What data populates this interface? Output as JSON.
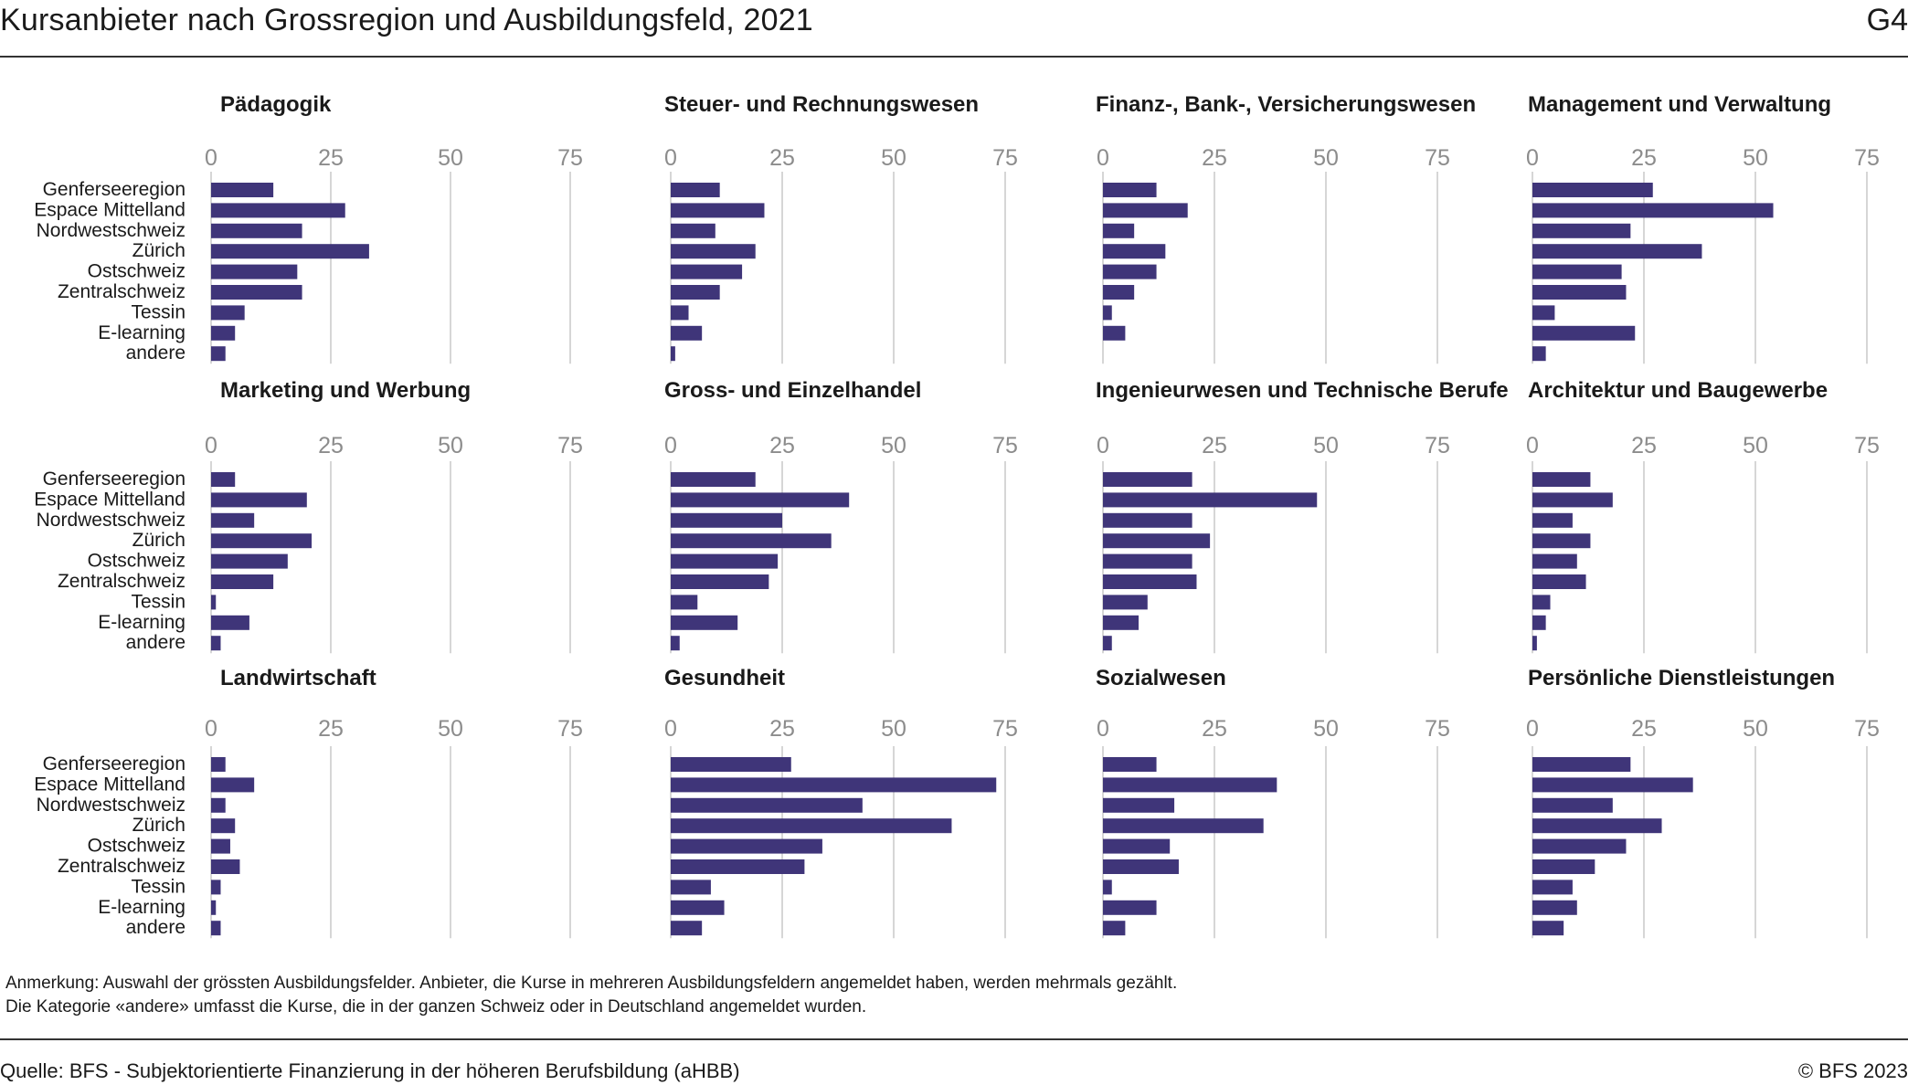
{
  "header": {
    "title": "Kursanbieter nach Grossregion und Ausbildungsfeld, 2021",
    "figure_id": "G4"
  },
  "footer": {
    "note_line1": "Anmerkung: Auswahl der grössten Ausbildungsfelder. Anbieter, die Kurse in mehreren Ausbildungsfeldern angemeldet haben, werden mehrmals gezählt.",
    "note_line2": "Die Kategorie «andere» umfasst die Kurse, die in der ganzen Schweiz oder in Deutschland angemeldet wurden.",
    "source": "Quelle: BFS - Subjektorientierte Finanzierung in der höheren Berufsbildung (aHBB)",
    "copyright": "© BFS 2023"
  },
  "colors": {
    "bar": "#3f3579",
    "grid": "#c8c8c8",
    "tick": "#8c8c8c",
    "text": "#1a1a1a"
  },
  "chart_data": {
    "type": "bar",
    "orientation": "horizontal",
    "layout": "small-multiples 4x3",
    "categories": [
      "Genferseeregion",
      "Espace Mittelland",
      "Nordwestschweiz",
      "Zürich",
      "Ostschweiz",
      "Zentralschweiz",
      "Tessin",
      "E-learning",
      "andere"
    ],
    "xticks": [
      0,
      25,
      50,
      75
    ],
    "xlim": [
      0,
      75
    ],
    "grid": "vertical",
    "panels": [
      {
        "title": "Pädagogik",
        "values": [
          13,
          28,
          19,
          33,
          18,
          19,
          7,
          5,
          3
        ]
      },
      {
        "title": "Steuer- und Rechnungswesen",
        "values": [
          11,
          21,
          10,
          19,
          16,
          11,
          4,
          7,
          1
        ]
      },
      {
        "title": "Finanz-, Bank-, Versicherungswesen",
        "values": [
          12,
          19,
          7,
          14,
          12,
          7,
          2,
          5,
          0
        ]
      },
      {
        "title": "Management und Verwaltung",
        "values": [
          27,
          54,
          22,
          38,
          20,
          21,
          5,
          23,
          3
        ]
      },
      {
        "title": "Marketing und Werbung",
        "values": [
          5,
          20,
          9,
          21,
          16,
          13,
          1,
          8,
          2
        ]
      },
      {
        "title": "Gross- und Einzelhandel",
        "values": [
          19,
          40,
          25,
          36,
          24,
          22,
          6,
          15,
          2
        ]
      },
      {
        "title": "Ingenieurwesen und Technische Berufe",
        "values": [
          20,
          48,
          20,
          24,
          20,
          21,
          10,
          8,
          2
        ]
      },
      {
        "title": "Architektur und Baugewerbe",
        "values": [
          13,
          18,
          9,
          13,
          10,
          12,
          4,
          3,
          1
        ]
      },
      {
        "title": "Landwirtschaft",
        "values": [
          3,
          9,
          3,
          5,
          4,
          6,
          2,
          1,
          2
        ]
      },
      {
        "title": "Gesundheit",
        "values": [
          27,
          73,
          43,
          63,
          34,
          30,
          9,
          12,
          7
        ]
      },
      {
        "title": "Sozialwesen",
        "values": [
          12,
          39,
          16,
          36,
          15,
          17,
          2,
          12,
          5
        ]
      },
      {
        "title": "Persönliche Dienstleistungen",
        "values": [
          22,
          36,
          18,
          29,
          21,
          14,
          9,
          10,
          7
        ]
      }
    ]
  }
}
